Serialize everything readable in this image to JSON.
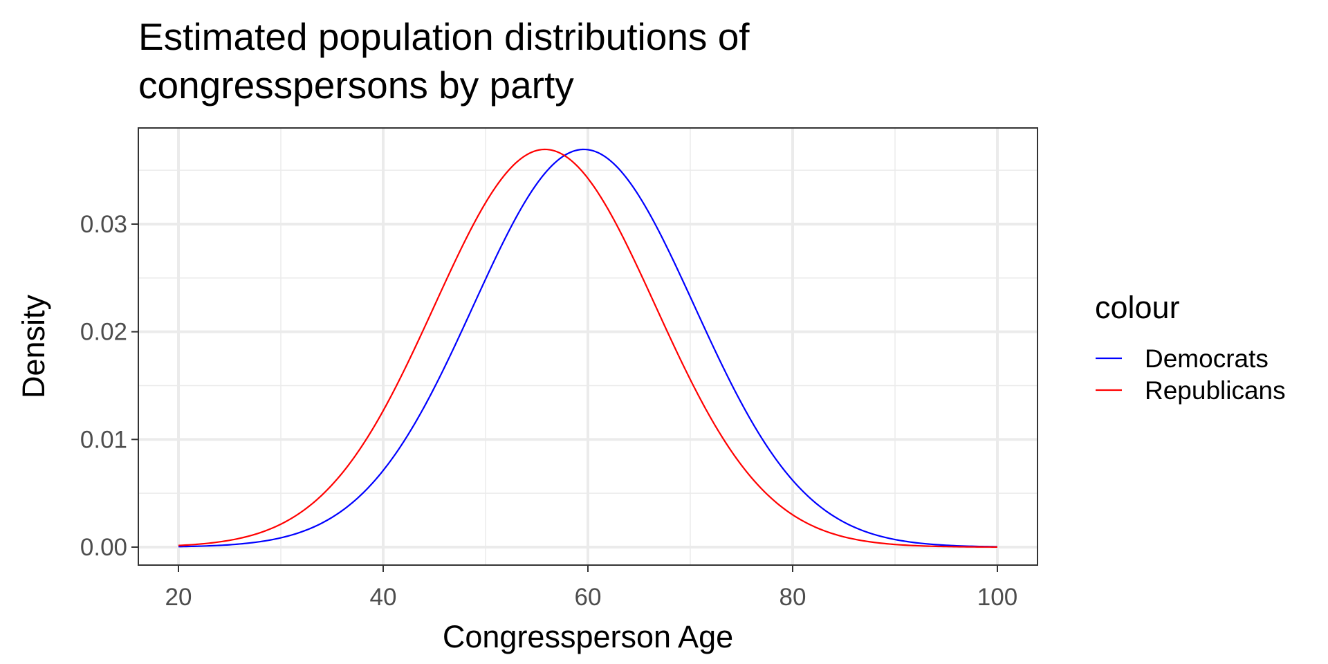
{
  "chart_data": {
    "type": "line",
    "title": "Estimated population distributions of congresspersons by party",
    "title_lines": [
      "Estimated population distributions of",
      "congresspersons by party"
    ],
    "xlabel": "Congressperson Age",
    "ylabel": "Density",
    "xlim": [
      20,
      100
    ],
    "ylim": [
      0,
      0.037
    ],
    "x_ticks": [
      20,
      40,
      60,
      80,
      100
    ],
    "x_tick_labels": [
      "20",
      "40",
      "60",
      "80",
      "100"
    ],
    "y_ticks": [
      0,
      0.01,
      0.02,
      0.03
    ],
    "y_tick_labels": [
      "0.00",
      "0.01",
      "0.02",
      "0.03"
    ],
    "grid": true,
    "legend": {
      "title": "colour",
      "position": "right"
    },
    "series": [
      {
        "name": "Democrats",
        "color": "#0000ff",
        "distribution": "normal",
        "mean": 59.6,
        "sd": 10.8,
        "x": [
          20,
          25,
          30,
          35,
          40,
          45,
          50,
          55,
          59.6,
          65,
          70,
          75,
          80,
          85,
          90,
          95,
          100
        ],
        "y": [
          0.0001,
          0.0003,
          0.0008,
          0.0028,
          0.0071,
          0.0148,
          0.0249,
          0.0338,
          0.0369,
          0.0335,
          0.0252,
          0.0149,
          0.0062,
          0.0024,
          0.0007,
          0.0002,
          0.0
        ]
      },
      {
        "name": "Republicans",
        "color": "#ff0000",
        "distribution": "normal",
        "mean": 55.8,
        "sd": 10.8,
        "x": [
          20,
          25,
          30,
          35,
          40,
          45,
          50,
          55.8,
          60,
          65,
          70,
          75,
          80,
          85,
          90,
          95,
          100
        ],
        "y": [
          0.0002,
          0.0007,
          0.0021,
          0.0057,
          0.0129,
          0.0234,
          0.032,
          0.0369,
          0.0347,
          0.0258,
          0.0155,
          0.0077,
          0.0031,
          0.001,
          0.0003,
          0.0001,
          0.0
        ]
      }
    ]
  }
}
